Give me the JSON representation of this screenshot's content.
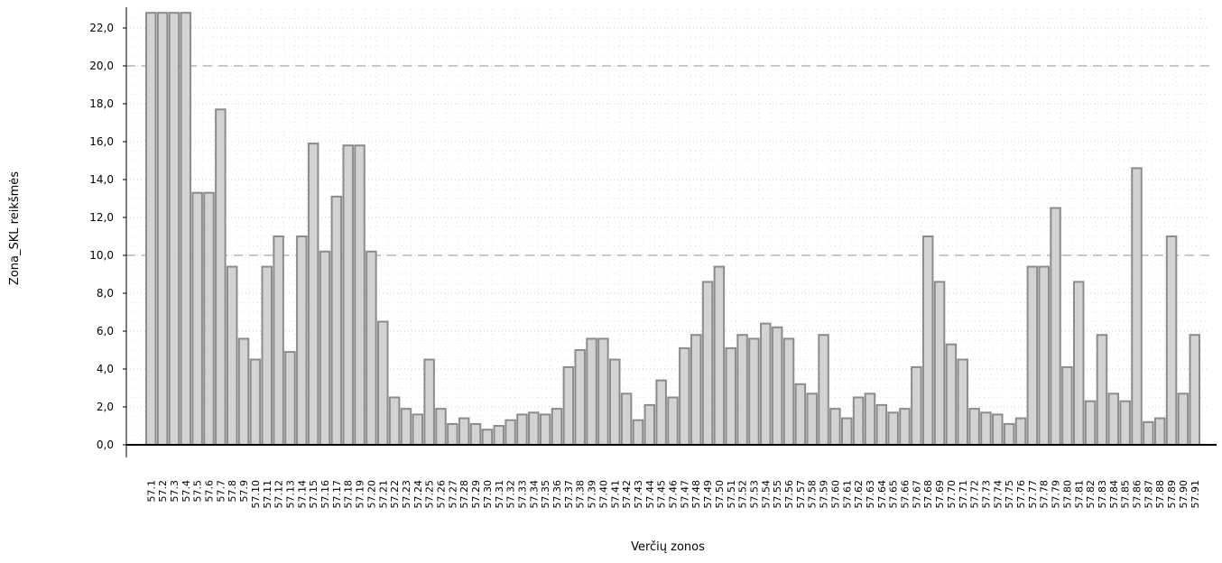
{
  "chart_data": {
    "type": "bar",
    "xlabel": "Verčių zonos",
    "ylabel": "Zona_SKL reikšmės",
    "ylim": [
      0,
      23
    ],
    "y_ticks": [
      "0,0",
      "2,0",
      "4,0",
      "6,0",
      "8,0",
      "10,0",
      "12,0",
      "14,0",
      "16,0",
      "18,0",
      "20,0",
      "22,0"
    ],
    "y_tick_values": [
      0,
      2,
      4,
      6,
      8,
      10,
      12,
      14,
      16,
      18,
      20,
      22
    ],
    "major_gridlines": [
      10,
      20
    ],
    "grid": true,
    "bar_fill": "#d3d3d3",
    "bar_stroke": "#8c8c8c",
    "categories": [
      "57.1",
      "57.2",
      "57.3",
      "57.4",
      "57.5",
      "57.6",
      "57.7",
      "57.8",
      "57.9",
      "57.10",
      "57.11",
      "57.12",
      "57.13",
      "57.14",
      "57.15",
      "57.16",
      "57.17",
      "57.18",
      "57.19",
      "57.20",
      "57.21",
      "57.22",
      "57.23",
      "57.24",
      "57.25",
      "57.26",
      "57.27",
      "57.28",
      "57.29",
      "57.30",
      "57.31",
      "57.32",
      "57.33",
      "57.34",
      "57.35",
      "57.36",
      "57.37",
      "57.38",
      "57.39",
      "57.40",
      "57.41",
      "57.42",
      "57.43",
      "57.44",
      "57.45",
      "57.46",
      "57.47",
      "57.48",
      "57.49",
      "57.50",
      "57.51",
      "57.52",
      "57.53",
      "57.54",
      "57.55",
      "57.56",
      "57.57",
      "57.58",
      "57.59",
      "57.60",
      "57.61",
      "57.62",
      "57.63",
      "57.64",
      "57.65",
      "57.66",
      "57.67",
      "57.68",
      "57.69",
      "57.70",
      "57.71",
      "57.72",
      "57.73",
      "57.74",
      "57.75",
      "57.76",
      "57.77",
      "57.78",
      "57.79",
      "57.80",
      "57.81",
      "57.82",
      "57.83",
      "57.84",
      "57.85",
      "57.86",
      "57.87",
      "57.88",
      "57.89",
      "57.90",
      "57.91"
    ],
    "values": [
      22.8,
      22.8,
      22.8,
      22.8,
      13.3,
      13.3,
      17.7,
      9.4,
      5.6,
      4.5,
      9.4,
      11.0,
      4.9,
      11.0,
      15.9,
      10.2,
      13.1,
      15.8,
      15.8,
      10.2,
      6.5,
      2.5,
      1.9,
      1.6,
      4.5,
      1.9,
      1.1,
      1.4,
      1.1,
      0.8,
      1.0,
      1.3,
      1.6,
      1.7,
      1.6,
      1.9,
      4.1,
      5.0,
      5.6,
      5.6,
      4.5,
      2.7,
      1.3,
      2.1,
      3.4,
      2.5,
      5.1,
      5.8,
      8.6,
      9.4,
      5.1,
      5.8,
      5.6,
      6.4,
      6.2,
      5.6,
      3.2,
      2.7,
      5.8,
      1.9,
      1.4,
      2.5,
      2.7,
      2.1,
      1.7,
      1.9,
      4.1,
      11.0,
      8.6,
      5.3,
      4.5,
      1.9,
      1.7,
      1.6,
      1.1,
      1.4,
      9.4,
      9.4,
      12.5,
      4.1,
      8.6,
      2.3,
      5.8,
      2.7,
      2.3,
      14.6,
      1.2,
      1.4,
      11.0,
      2.7,
      5.8
    ]
  }
}
